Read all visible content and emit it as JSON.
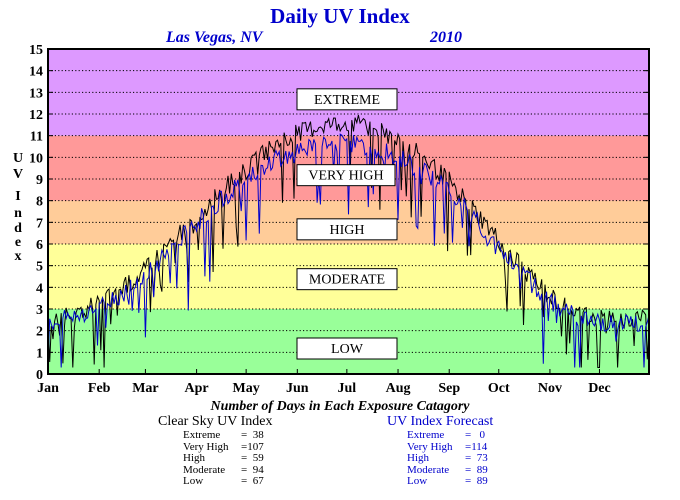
{
  "chart_data": {
    "type": "line",
    "title": "Daily UV Index",
    "subtitle_location": "Las Vegas, NV",
    "subtitle_year": "2010",
    "ylabel": "U V I n d e x",
    "xlabel": "",
    "ylim": [
      0,
      15
    ],
    "xlim": [
      1,
      365
    ],
    "yticks": [
      0,
      1,
      2,
      3,
      4,
      5,
      6,
      7,
      8,
      9,
      10,
      11,
      12,
      13,
      14,
      15
    ],
    "month_labels": [
      "Jan",
      "Feb",
      "Mar",
      "Apr",
      "May",
      "Jun",
      "Jul",
      "Aug",
      "Sep",
      "Oct",
      "Nov",
      "Dec"
    ],
    "grid": "dotted-horizontal",
    "bands": [
      {
        "label": "LOW",
        "from": 0,
        "to": 3,
        "color": "#99ff99",
        "box_y": 1.2
      },
      {
        "label": "MODERATE",
        "from": 3,
        "to": 6,
        "color": "#ffff99",
        "box_y": 4.4
      },
      {
        "label": "HIGH",
        "from": 6,
        "to": 8,
        "color": "#ffcc99",
        "box_y": 6.7
      },
      {
        "label": "VERY HIGH",
        "from": 8,
        "to": 11,
        "color": "#ff9999",
        "box_y": 9.2
      },
      {
        "label": "EXTREME",
        "from": 11,
        "to": 15,
        "color": "#dd99ff",
        "box_y": 12.7
      }
    ],
    "series": [
      {
        "key": "clear",
        "color": "#000000",
        "days": [
          1,
          15,
          32,
          46,
          60,
          74,
          91,
          105,
          121,
          135,
          152,
          166,
          182,
          196,
          213,
          227,
          244,
          258,
          274,
          288,
          305,
          319,
          335,
          349,
          365
        ],
        "values": [
          2.5,
          2.7,
          3.3,
          3.9,
          4.8,
          6.0,
          7.3,
          8.4,
          9.4,
          10.4,
          11.1,
          11.5,
          11.6,
          11.4,
          10.9,
          10.1,
          8.9,
          7.7,
          6.2,
          4.9,
          3.6,
          2.9,
          2.6,
          2.5,
          2.5
        ]
      },
      {
        "key": "forecast",
        "color": "#0000cc",
        "days": [
          1,
          15,
          32,
          46,
          60,
          74,
          91,
          105,
          121,
          135,
          152,
          166,
          182,
          196,
          213,
          227,
          244,
          258,
          274,
          288,
          305,
          319,
          335,
          349,
          365
        ],
        "values": [
          2.4,
          2.6,
          3.1,
          3.7,
          4.5,
          5.7,
          7.0,
          8.0,
          9.0,
          9.8,
          10.3,
          10.6,
          10.7,
          10.5,
          10.0,
          9.4,
          8.4,
          7.3,
          5.9,
          4.6,
          3.4,
          2.7,
          2.4,
          2.3,
          2.3
        ]
      }
    ]
  },
  "stats": {
    "heading": "Number of Days in Each Exposure Catagory",
    "clear": {
      "title": "Clear Sky UV Index",
      "rows": [
        {
          "label": "Extreme",
          "value": "=  38"
        },
        {
          "label": "Very High",
          "value": "=107"
        },
        {
          "label": "High",
          "value": "=  59"
        },
        {
          "label": "Moderate",
          "value": "=  94"
        },
        {
          "label": "Low",
          "value": "=  67"
        }
      ]
    },
    "forecast": {
      "title": "UV Index Forecast",
      "rows": [
        {
          "label": "Extreme",
          "value": "=   0"
        },
        {
          "label": "Very High",
          "value": "=114"
        },
        {
          "label": "High",
          "value": "=  73"
        },
        {
          "label": "Moderate",
          "value": "=  89"
        },
        {
          "label": "Low",
          "value": "=  89"
        }
      ]
    }
  }
}
